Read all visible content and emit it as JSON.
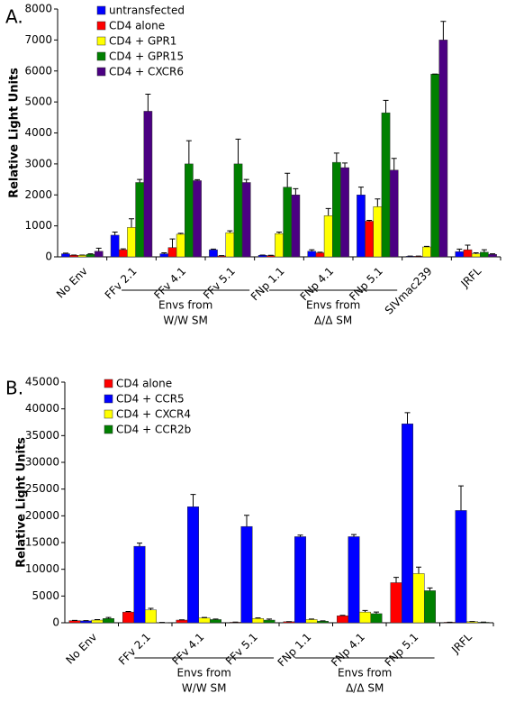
{
  "chart_data": [
    {
      "type": "bar",
      "panel_label": "A.",
      "y_label": "Relative Light Units",
      "categories": [
        "No Env",
        "FFv 2.1",
        "FFv 4.1",
        "FFv 5.1",
        "FNp 1.1",
        "FNp 4.1",
        "FNp 5.1",
        "SIVmac239",
        "JRFL"
      ],
      "series": [
        {
          "name": "untransfected",
          "color": "#0000ff",
          "values": [
            100,
            700,
            100,
            230,
            50,
            180,
            2000,
            20,
            170
          ],
          "errors": [
            20,
            100,
            30,
            20,
            10,
            50,
            250,
            5,
            80
          ]
        },
        {
          "name": "CD4 alone",
          "color": "#ff0000",
          "values": [
            50,
            230,
            300,
            30,
            40,
            130,
            1150,
            20,
            230
          ],
          "errors": [
            10,
            30,
            280,
            10,
            10,
            20,
            30,
            5,
            150
          ]
        },
        {
          "name": "CD4 + GPR1",
          "color": "#ffff00",
          "values": [
            50,
            950,
            730,
            780,
            750,
            1330,
            1620,
            320,
            100
          ],
          "errors": [
            10,
            280,
            30,
            60,
            50,
            230,
            250,
            20,
            30
          ]
        },
        {
          "name": "CD4 + GPR15",
          "color": "#008000",
          "values": [
            80,
            2400,
            3000,
            3000,
            2250,
            3050,
            4650,
            5900,
            150
          ],
          "errors": [
            20,
            100,
            750,
            800,
            450,
            300,
            400,
            0,
            80
          ]
        },
        {
          "name": "CD4 + CXCR6",
          "color": "#4b0082",
          "values": [
            180,
            4700,
            2460,
            2400,
            2000,
            2880,
            2800,
            7000,
            80
          ],
          "errors": [
            100,
            550,
            30,
            100,
            200,
            150,
            380,
            600,
            20
          ]
        }
      ],
      "ylim": [
        0,
        8000
      ],
      "yticks": [
        0,
        1000,
        2000,
        3000,
        4000,
        5000,
        6000,
        7000,
        8000
      ],
      "legend": "upper left",
      "annotations": [
        {
          "lines": [
            "Envs from",
            "W/W SM"
          ]
        },
        {
          "lines": [
            "Envs from",
            "Δ/Δ SM"
          ]
        }
      ]
    },
    {
      "type": "bar",
      "panel_label": "B.",
      "y_label": "Relative Light Units",
      "categories": [
        "No Env",
        "FFv 2.1",
        "FFv 4.1",
        "FFv 5.1",
        "FNp 1.1",
        "FNp 4.1",
        "FNp 5.1",
        "JRFL"
      ],
      "series": [
        {
          "name": "CD4 alone",
          "color": "#ff0000",
          "values": [
            400,
            2000,
            500,
            100,
            200,
            1300,
            7500,
            100
          ],
          "errors": [
            50,
            100,
            50,
            20,
            20,
            100,
            1000,
            10
          ]
        },
        {
          "name": "CD4 + CCR5",
          "color": "#0000ff",
          "values": [
            350,
            14300,
            21700,
            18000,
            16100,
            16100,
            37200,
            21000
          ],
          "errors": [
            50,
            600,
            2300,
            2100,
            300,
            400,
            2100,
            4600
          ]
        },
        {
          "name": "CD4 + CXCR4",
          "color": "#ffff00",
          "values": [
            500,
            2400,
            900,
            800,
            600,
            2000,
            9200,
            200
          ],
          "errors": [
            100,
            300,
            100,
            100,
            100,
            300,
            1200,
            30
          ]
        },
        {
          "name": "CD4 + CCR2b",
          "color": "#008000",
          "values": [
            800,
            50,
            600,
            500,
            300,
            1700,
            6000,
            100
          ],
          "errors": [
            200,
            10,
            100,
            200,
            50,
            300,
            500,
            20
          ]
        }
      ],
      "ylim": [
        0,
        45000
      ],
      "yticks": [
        0,
        5000,
        10000,
        15000,
        20000,
        25000,
        30000,
        35000,
        40000,
        45000
      ],
      "legend": "upper left",
      "annotations": [
        {
          "lines": [
            "Envs from",
            "W/W SM"
          ]
        },
        {
          "lines": [
            "Envs from",
            "Δ/Δ SM"
          ]
        }
      ]
    }
  ]
}
